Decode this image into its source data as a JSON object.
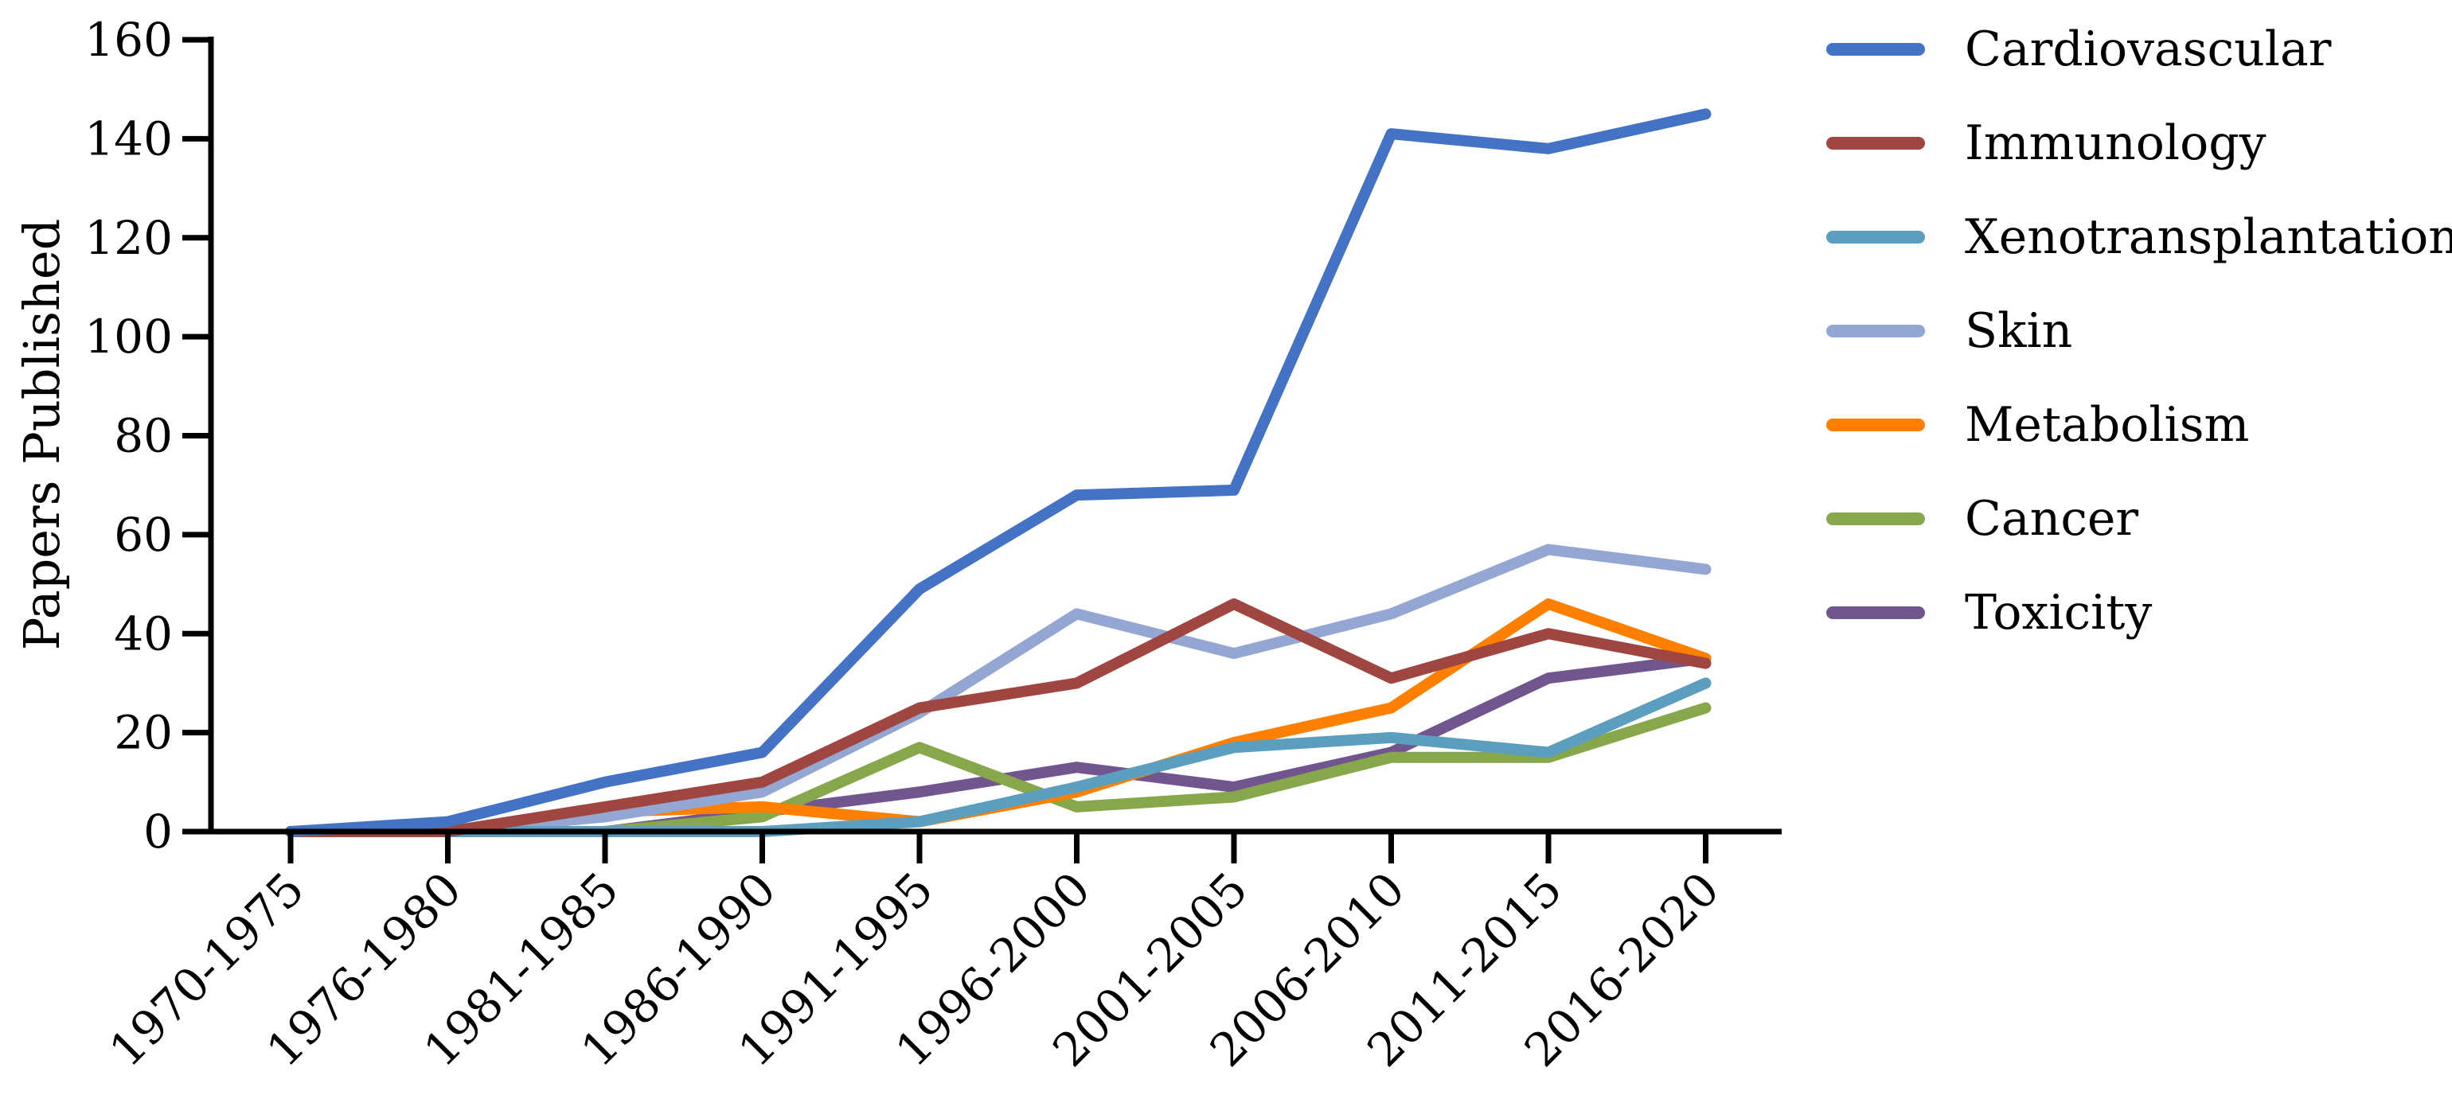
{
  "chart_data": {
    "type": "line",
    "title": "",
    "xlabel": "",
    "ylabel": "Papers Published",
    "ylim": [
      0,
      160
    ],
    "yticks": [
      0,
      20,
      40,
      60,
      80,
      100,
      120,
      140,
      160
    ],
    "grid": false,
    "legend_position": "right",
    "categories": [
      "1970-1975",
      "1976-1980",
      "1981-1985",
      "1986-1990",
      "1991-1995",
      "1996-2000",
      "2001-2005",
      "2006-2010",
      "2011-2015",
      "2016-2020"
    ],
    "series": [
      {
        "name": "Cardiovascular",
        "color": "#4472c4",
        "values": [
          0,
          2,
          10,
          16,
          49,
          68,
          69,
          141,
          138,
          145
        ]
      },
      {
        "name": "Immunology",
        "color": "#9e463f",
        "values": [
          0,
          0,
          5,
          10,
          25,
          30,
          46,
          31,
          40,
          34
        ]
      },
      {
        "name": "Xenotransplantation",
        "color": "#5b9ebe",
        "values": [
          0,
          0,
          0,
          0,
          2,
          9,
          17,
          19,
          16,
          30
        ]
      },
      {
        "name": "Skin",
        "color": "#93a7d2",
        "values": [
          0,
          0,
          3,
          8,
          24,
          44,
          36,
          44,
          57,
          53
        ]
      },
      {
        "name": "Metabolism",
        "color": "#ff8000",
        "values": [
          0,
          0,
          4,
          5,
          2,
          8,
          18,
          25,
          46,
          35
        ]
      },
      {
        "name": "Cancer",
        "color": "#86a84a",
        "values": [
          0,
          0,
          0,
          3,
          17,
          5,
          7,
          15,
          15,
          25
        ]
      },
      {
        "name": "Toxicity",
        "color": "#71558f",
        "values": [
          0,
          0,
          0,
          4,
          8,
          13,
          9,
          16,
          31,
          35
        ]
      }
    ]
  }
}
